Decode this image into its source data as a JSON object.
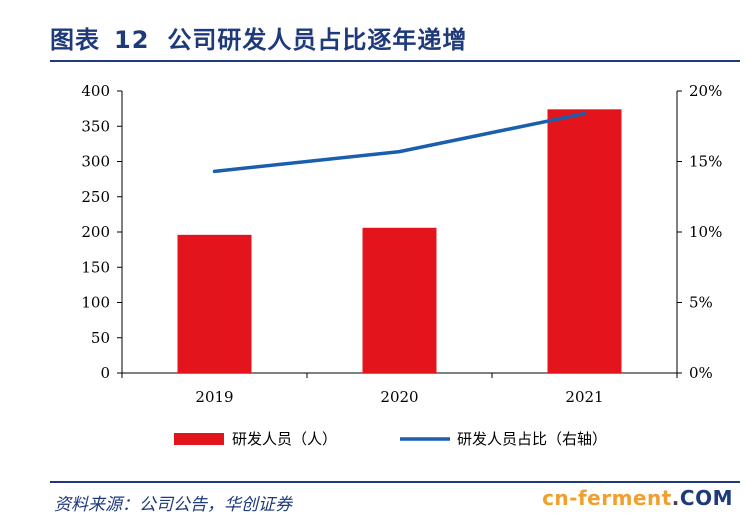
{
  "header": {
    "figure_label": "图表",
    "figure_number": "12",
    "title": "公司研发人员占比逐年递增"
  },
  "footer": {
    "source": "资料来源：公司公告，华创证券"
  },
  "watermark": {
    "part1": "cn-ferment",
    "dot": ".",
    "part2": "COM"
  },
  "colors": {
    "bar": "#e3141c",
    "line": "#1a5fae",
    "title": "#1f3a7a"
  },
  "chart_data": {
    "type": "bar",
    "categories": [
      "2019",
      "2020",
      "2021"
    ],
    "series": [
      {
        "name": "研发人员（人）",
        "type": "bar",
        "axis": "left",
        "values": [
          196,
          206,
          374
        ]
      },
      {
        "name": "研发人员占比（右轴）",
        "type": "line",
        "axis": "right",
        "values": [
          14.3,
          15.7,
          18.4
        ]
      }
    ],
    "y_left": {
      "min": 0,
      "max": 400,
      "ticks": [
        "0",
        "50",
        "100",
        "150",
        "200",
        "250",
        "300",
        "350",
        "400"
      ]
    },
    "y_right": {
      "min": 0,
      "max": 20,
      "ticks": [
        "0%",
        "5%",
        "10%",
        "15%",
        "20%"
      ]
    },
    "grid": false,
    "legend": "bottom"
  }
}
